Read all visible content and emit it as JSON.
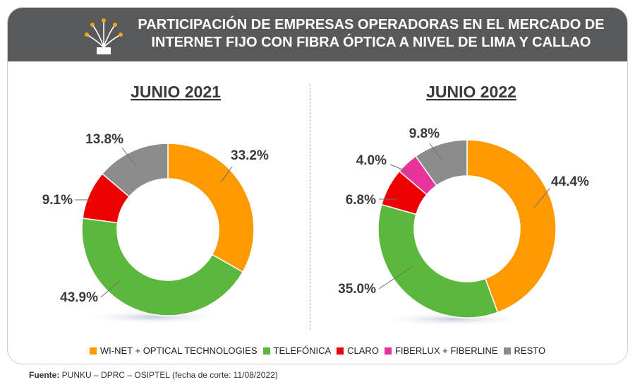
{
  "header": {
    "title": "PARTICIPACIÓN DE EMPRESAS OPERADORAS EN EL MERCADO DE INTERNET FIJO CON FIBRA ÓPTICA A NIVEL DE LIMA Y CALLAO",
    "icon": "fiber-optic-icon"
  },
  "colors": {
    "header_bg": "#58595b",
    "wi_net": "#ff9900",
    "telefonica": "#5cb83c",
    "claro": "#ee0000",
    "fiberlux": "#e8339c",
    "resto": "#8c8c8c"
  },
  "chart_data": [
    {
      "type": "donut",
      "title": "JUNIO 2021",
      "slices": [
        {
          "name": "WI-NET + OPTICAL TECHNOLOGIES",
          "value": 33.2,
          "label": "33.2%",
          "color": "#ff9900"
        },
        {
          "name": "TELEFÓNICA",
          "value": 43.9,
          "label": "43.9%",
          "color": "#5cb83c"
        },
        {
          "name": "CLARO",
          "value": 9.1,
          "label": "9.1%",
          "color": "#ee0000"
        },
        {
          "name": "RESTO",
          "value": 13.8,
          "label": "13.8%",
          "color": "#8c8c8c"
        }
      ]
    },
    {
      "type": "donut",
      "title": "JUNIO 2022",
      "slices": [
        {
          "name": "WI-NET + OPTICAL TECHNOLOGIES",
          "value": 44.4,
          "label": "44.4%",
          "color": "#ff9900"
        },
        {
          "name": "TELEFÓNICA",
          "value": 35.0,
          "label": "35.0%",
          "color": "#5cb83c"
        },
        {
          "name": "CLARO",
          "value": 6.8,
          "label": "6.8%",
          "color": "#ee0000"
        },
        {
          "name": "FIBERLUX + FIBERLINE",
          "value": 4.0,
          "label": "4.0%",
          "color": "#e8339c"
        },
        {
          "name": "RESTO",
          "value": 9.8,
          "label": "9.8%",
          "color": "#8c8c8c"
        }
      ]
    }
  ],
  "legend": [
    {
      "label": "WI-NET + OPTICAL TECHNOLOGIES",
      "color": "#ff9900"
    },
    {
      "label": "TELEFÓNICA",
      "color": "#5cb83c"
    },
    {
      "label": "CLARO",
      "color": "#ee0000"
    },
    {
      "label": "FIBERLUX + FIBERLINE",
      "color": "#e8339c"
    },
    {
      "label": "RESTO",
      "color": "#8c8c8c"
    }
  ],
  "source": {
    "prefix": "Fuente:",
    "text": " PUNKU – DPRC – OSIPTEL (fecha de corte: 11/08/2022)"
  }
}
